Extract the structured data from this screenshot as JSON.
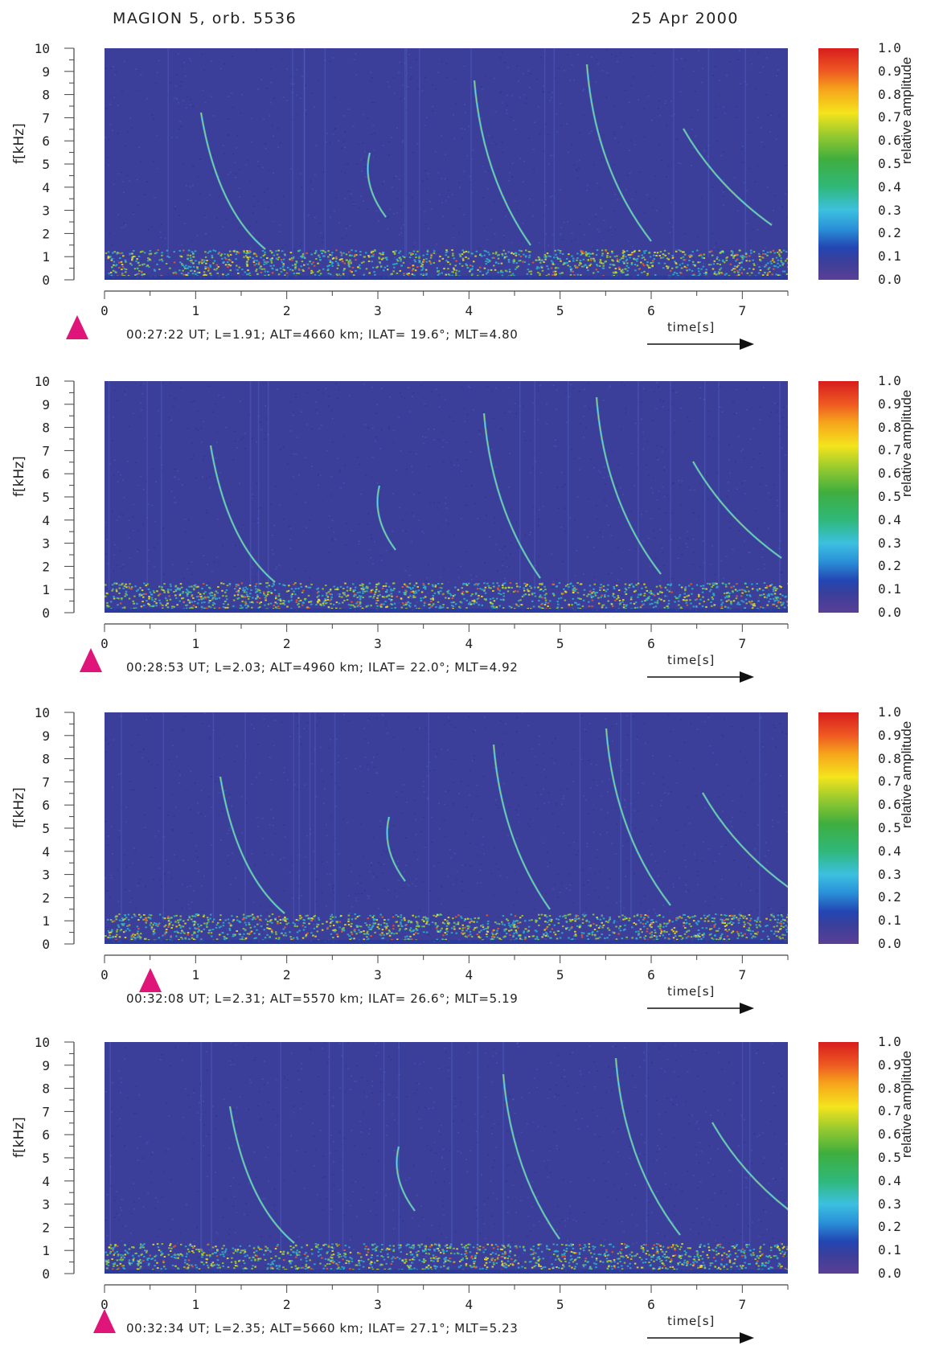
{
  "header": {
    "left": "MAGION 5, orb. 5536",
    "right": "25 Apr 2000"
  },
  "chart_data": [
    {
      "type": "heatmap",
      "ylabel": "f[kHz]",
      "xlabel": "time[s]",
      "x_ticks": [
        "0",
        "1",
        "2",
        "3",
        "4",
        "5",
        "6",
        "7"
      ],
      "y_ticks": [
        "0",
        "1",
        "2",
        "3",
        "4",
        "5",
        "6",
        "7",
        "8",
        "9",
        "10"
      ],
      "xlim": [
        0,
        7.5
      ],
      "ylim": [
        0,
        10
      ],
      "caption": "00:27:22 UT; L=1.91; ALT=4660 km; ILAT= 19.6°; MLT=4.80",
      "marker_time": -0.3,
      "colorbar": {
        "label": "relative amplitude",
        "ticks": [
          "0.0",
          "0.1",
          "0.2",
          "0.3",
          "0.4",
          "0.5",
          "0.6",
          "0.7",
          "0.8",
          "0.9",
          "1.0"
        ]
      }
    },
    {
      "type": "heatmap",
      "ylabel": "f[kHz]",
      "xlabel": "time[s]",
      "x_ticks": [
        "0",
        "1",
        "2",
        "3",
        "4",
        "5",
        "6",
        "7"
      ],
      "y_ticks": [
        "0",
        "1",
        "2",
        "3",
        "4",
        "5",
        "6",
        "7",
        "8",
        "9",
        "10"
      ],
      "xlim": [
        0,
        7.5
      ],
      "ylim": [
        0,
        10
      ],
      "caption": "00:28:53 UT; L=2.03; ALT=4960 km; ILAT= 22.0°; MLT=4.92",
      "marker_time": -0.15,
      "colorbar": {
        "label": "relative amplitude",
        "ticks": [
          "0.0",
          "0.1",
          "0.2",
          "0.3",
          "0.4",
          "0.5",
          "0.6",
          "0.7",
          "0.8",
          "0.9",
          "1.0"
        ]
      }
    },
    {
      "type": "heatmap",
      "ylabel": "f[kHz]",
      "xlabel": "time[s]",
      "x_ticks": [
        "0",
        "1",
        "2",
        "3",
        "4",
        "5",
        "6",
        "7"
      ],
      "y_ticks": [
        "0",
        "1",
        "2",
        "3",
        "4",
        "5",
        "6",
        "7",
        "8",
        "9",
        "10"
      ],
      "xlim": [
        0,
        7.5
      ],
      "ylim": [
        0,
        10
      ],
      "caption": "00:32:08 UT; L=2.31; ALT=5570 km; ILAT= 26.6°; MLT=5.19",
      "marker_time": 0.5,
      "colorbar": {
        "label": "relative amplitude",
        "ticks": [
          "0.0",
          "0.1",
          "0.2",
          "0.3",
          "0.4",
          "0.5",
          "0.6",
          "0.7",
          "0.8",
          "0.9",
          "1.0"
        ]
      }
    },
    {
      "type": "heatmap",
      "ylabel": "f[kHz]",
      "xlabel": "time[s]",
      "x_ticks": [
        "0",
        "1",
        "2",
        "3",
        "4",
        "5",
        "6",
        "7"
      ],
      "y_ticks": [
        "0",
        "1",
        "2",
        "3",
        "4",
        "5",
        "6",
        "7",
        "8",
        "9",
        "10"
      ],
      "xlim": [
        0,
        7.5
      ],
      "ylim": [
        0,
        10
      ],
      "caption": "00:32:34 UT; L=2.35; ALT=5660 km; ILAT= 27.1°; MLT=5.23",
      "marker_time": 0.0,
      "colorbar": {
        "label": "relative amplitude",
        "ticks": [
          "0.0",
          "0.1",
          "0.2",
          "0.3",
          "0.4",
          "0.5",
          "0.6",
          "0.7",
          "0.8",
          "0.9",
          "1.0"
        ]
      }
    }
  ],
  "colors": {
    "background_field": "#3b3f9a",
    "marker": "#e0157a",
    "noise_band": [
      "#2fb0c8",
      "#9ccb2e",
      "#f4e41c",
      "#ee5a22"
    ]
  }
}
